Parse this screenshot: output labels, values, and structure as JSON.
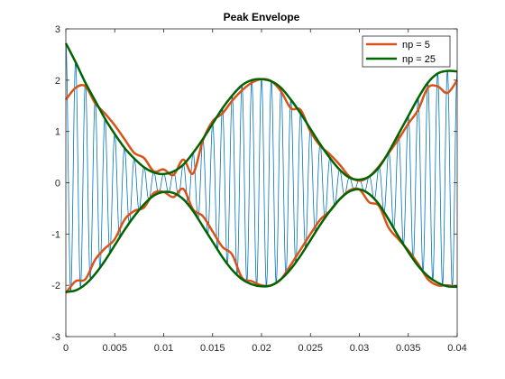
{
  "chart_data": {
    "type": "line",
    "title": "Peak Envelope",
    "xlabel": "",
    "ylabel": "",
    "xlim": [
      0,
      0.04
    ],
    "ylim": [
      -3,
      3
    ],
    "xticks": [
      0,
      0.005,
      0.01,
      0.015,
      0.02,
      0.025,
      0.03,
      0.035,
      0.04
    ],
    "xtick_labels": [
      "0",
      "0.005",
      "0.01",
      "0.015",
      "0.02",
      "0.025",
      "0.03",
      "0.035",
      "0.04"
    ],
    "yticks": [
      -3,
      -2,
      -1,
      0,
      1,
      2,
      3
    ],
    "ytick_labels": [
      "-3",
      "-2",
      "-1",
      "0",
      "1",
      "2",
      "3"
    ],
    "grid": false,
    "legend": {
      "placement": "top-right",
      "entries": [
        "np = 5",
        "np = 25"
      ]
    },
    "series": [
      {
        "name": "",
        "color": "#0072BD",
        "line_width": 0.8,
        "signal": "oscillating",
        "carrier_frequency_hz": 1000,
        "envelope_from": "np = 25"
      },
      {
        "name": "np = 5",
        "color": "#D95319",
        "line_width": 2.5,
        "x": [
          0,
          0.001,
          0.002,
          0.003,
          0.004,
          0.005,
          0.006,
          0.007,
          0.008,
          0.009,
          0.01,
          0.011,
          0.012,
          0.013,
          0.014,
          0.015,
          0.016,
          0.017,
          0.018,
          0.019,
          0.02,
          0.021,
          0.022,
          0.023,
          0.024,
          0.025,
          0.026,
          0.027,
          0.028,
          0.029,
          0.03,
          0.031,
          0.032,
          0.033,
          0.034,
          0.035,
          0.036,
          0.037,
          0.038,
          0.039,
          0.04
        ],
        "upper": [
          1.62,
          1.85,
          1.88,
          1.55,
          1.35,
          1.12,
          0.85,
          0.58,
          0.48,
          0.22,
          0.26,
          0.15,
          0.45,
          0.18,
          0.82,
          1.2,
          1.35,
          1.6,
          1.8,
          1.95,
          2.02,
          1.98,
          1.78,
          1.45,
          1.42,
          1.0,
          0.72,
          0.55,
          0.35,
          0.12,
          0.04,
          0.12,
          0.32,
          0.58,
          0.85,
          1.15,
          1.42,
          1.85,
          1.88,
          1.75,
          2.0
        ],
        "lower": [
          -2.15,
          -1.92,
          -1.88,
          -1.5,
          -1.28,
          -1.1,
          -0.72,
          -0.55,
          -0.48,
          -0.2,
          -0.18,
          -0.28,
          -0.12,
          -0.52,
          -0.65,
          -0.95,
          -1.25,
          -1.4,
          -1.85,
          -1.92,
          -2.0,
          -2.0,
          -1.88,
          -1.6,
          -1.3,
          -1.0,
          -0.72,
          -0.55,
          -0.32,
          -0.15,
          -0.13,
          -0.38,
          -0.45,
          -0.88,
          -1.1,
          -1.32,
          -1.58,
          -1.88,
          -2.0,
          -2.0,
          -2.03
        ]
      },
      {
        "name": "np = 25",
        "color": "#006400",
        "line_width": 2.5,
        "x": [
          0,
          0.001,
          0.002,
          0.003,
          0.004,
          0.005,
          0.006,
          0.007,
          0.008,
          0.009,
          0.01,
          0.011,
          0.012,
          0.013,
          0.014,
          0.015,
          0.016,
          0.017,
          0.018,
          0.019,
          0.02,
          0.021,
          0.022,
          0.023,
          0.024,
          0.025,
          0.026,
          0.027,
          0.028,
          0.029,
          0.03,
          0.031,
          0.032,
          0.033,
          0.034,
          0.035,
          0.036,
          0.037,
          0.038,
          0.039,
          0.04
        ],
        "upper": [
          2.72,
          2.35,
          1.95,
          1.6,
          1.25,
          0.95,
          0.68,
          0.47,
          0.3,
          0.2,
          0.17,
          0.22,
          0.35,
          0.58,
          0.85,
          1.15,
          1.45,
          1.7,
          1.9,
          2.0,
          2.02,
          1.98,
          1.85,
          1.62,
          1.35,
          1.05,
          0.75,
          0.48,
          0.25,
          0.1,
          0.06,
          0.12,
          0.3,
          0.6,
          0.95,
          1.3,
          1.65,
          1.95,
          2.13,
          2.18,
          2.17
        ],
        "lower": [
          -2.13,
          -2.1,
          -1.98,
          -1.78,
          -1.52,
          -1.22,
          -0.92,
          -0.65,
          -0.42,
          -0.25,
          -0.18,
          -0.2,
          -0.32,
          -0.55,
          -0.85,
          -1.15,
          -1.45,
          -1.7,
          -1.88,
          -1.98,
          -2.02,
          -2.0,
          -1.88,
          -1.68,
          -1.42,
          -1.12,
          -0.82,
          -0.55,
          -0.32,
          -0.17,
          -0.13,
          -0.22,
          -0.42,
          -0.72,
          -1.05,
          -1.35,
          -1.62,
          -1.82,
          -1.95,
          -2.02,
          -2.03
        ]
      }
    ]
  }
}
